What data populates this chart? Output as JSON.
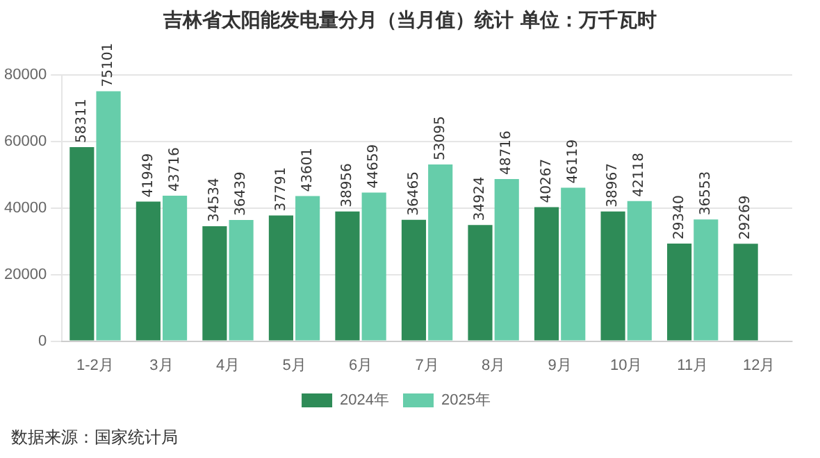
{
  "chart_data": {
    "type": "bar",
    "title": "吉林省太阳能发电量分月（当月值）统计  单位：万千瓦时",
    "categories": [
      "1-2月",
      "3月",
      "4月",
      "5月",
      "6月",
      "7月",
      "8月",
      "9月",
      "10月",
      "11月",
      "12月"
    ],
    "series": [
      {
        "name": "2024年",
        "color": "#2e8b57",
        "values": [
          58311,
          41949,
          34534,
          37791,
          38956,
          36465,
          34924,
          40267,
          38967,
          29340,
          29269
        ]
      },
      {
        "name": "2025年",
        "color": "#66cdaa",
        "values": [
          75101,
          43716,
          36439,
          43601,
          44659,
          53095,
          48716,
          46119,
          42118,
          36553,
          null
        ]
      }
    ],
    "ylim": [
      0,
      80000
    ],
    "yticks": [
      0,
      20000,
      40000,
      60000,
      80000
    ],
    "grid": "y",
    "legend": "bottom",
    "data_labels": true,
    "annotations": [
      "数据来源：国家统计局"
    ]
  }
}
